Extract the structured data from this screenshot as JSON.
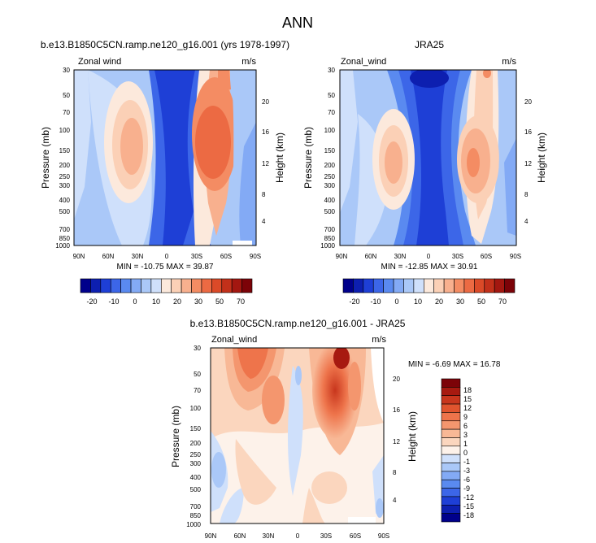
{
  "figure": {
    "title": "ANN"
  },
  "colors": {
    "full_field": [
      "#00008b",
      "#0d1fb0",
      "#1e3fd6",
      "#3c66e8",
      "#5a8af0",
      "#83aaf5",
      "#aac8f8",
      "#cfe0fb",
      "#fce9dc",
      "#fbd0b6",
      "#f8b08e",
      "#f48c63",
      "#ec6a43",
      "#db4a28",
      "#c2301a",
      "#a31710",
      "#7c0308"
    ],
    "diff_field": [
      "#00008b",
      "#0d1fb0",
      "#1e3fd6",
      "#3c66e8",
      "#5a8af0",
      "#83aaf5",
      "#aac8f8",
      "#cfe0fb",
      "#fdf2ea",
      "#fbd6be",
      "#f8b896",
      "#f4966e",
      "#ee744b",
      "#e0542e",
      "#c8361d",
      "#a71a10",
      "#7c0308"
    ]
  },
  "chart_data": [
    {
      "type": "heatmap",
      "title": "b.e13.B1850C5CN.ramp.ne120_g16.001 (yrs 1978-1997)",
      "left_label": "Zonal wind",
      "units": "m/s",
      "ylabel": "Pressure (mb)",
      "right_label": "Height (km)",
      "x_ticks": [
        "90N",
        "60N",
        "30N",
        "0",
        "30S",
        "60S",
        "90S"
      ],
      "y_ticks": [
        "30",
        "50",
        "70",
        "100",
        "150",
        "200",
        "250",
        "300",
        "400",
        "500",
        "700",
        "850",
        "1000"
      ],
      "height_ticks": [
        "20",
        "16",
        "12",
        "8",
        "4"
      ],
      "stats": "MIN = -10.75  MAX = 39.87",
      "colorbar_labels": [
        "-20",
        "-10",
        "0",
        "10",
        "20",
        "30",
        "50",
        "70"
      ]
    },
    {
      "type": "heatmap",
      "title": "JRA25",
      "left_label": "Zonal_wind",
      "units": "m/s",
      "ylabel": "Pressure (mb)",
      "right_label": "Height (km)",
      "x_ticks": [
        "90N",
        "60N",
        "30N",
        "0",
        "30S",
        "60S",
        "90S"
      ],
      "y_ticks": [
        "30",
        "50",
        "70",
        "100",
        "150",
        "200",
        "250",
        "300",
        "400",
        "500",
        "700",
        "850",
        "1000"
      ],
      "height_ticks": [
        "20",
        "16",
        "12",
        "8",
        "4"
      ],
      "stats": "MIN = -12.85  MAX = 30.91",
      "colorbar_labels": [
        "-20",
        "-10",
        "0",
        "10",
        "20",
        "30",
        "50",
        "70"
      ]
    },
    {
      "type": "heatmap",
      "title": "b.e13.B1850C5CN.ramp.ne120_g16.001 - JRA25",
      "left_label": "Zonal_wind",
      "units": "m/s",
      "ylabel": "Pressure (mb)",
      "right_label": "Height (km)",
      "x_ticks": [
        "90N",
        "60N",
        "30N",
        "0",
        "30S",
        "60S",
        "90S"
      ],
      "y_ticks": [
        "30",
        "50",
        "70",
        "100",
        "150",
        "200",
        "250",
        "300",
        "400",
        "500",
        "700",
        "850",
        "1000"
      ],
      "height_ticks": [
        "20",
        "16",
        "12",
        "8",
        "4"
      ],
      "stats": "MIN = -6.69  MAX = 16.78",
      "colorbar_labels": [
        "18",
        "15",
        "12",
        "9",
        "6",
        "3",
        "1",
        "0",
        "-1",
        "-3",
        "-6",
        "-9",
        "-12",
        "-15",
        "-18"
      ]
    }
  ]
}
